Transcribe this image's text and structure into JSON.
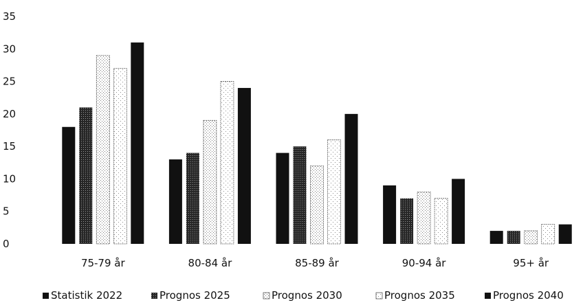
{
  "chart_data": {
    "type": "bar",
    "categories": [
      "75-79 år",
      "80-84 år",
      "85-89 år",
      "90-94 år",
      "95+ år"
    ],
    "series": [
      {
        "name": "Statistik 2022",
        "values": [
          18,
          13,
          14,
          9,
          2
        ],
        "color": "#111111",
        "pattern": "solid"
      },
      {
        "name": "Prognos 2025",
        "values": [
          21,
          14,
          15,
          7,
          2
        ],
        "color": "#333333",
        "pattern": "dense-dots"
      },
      {
        "name": "Prognos 2030",
        "values": [
          29,
          19,
          12,
          8,
          2
        ],
        "color": "#ffffff",
        "pattern": "light-dots"
      },
      {
        "name": "Prognos 2035",
        "values": [
          27,
          25,
          16,
          7,
          3
        ],
        "color": "#ffffff",
        "pattern": "sparse-dots"
      },
      {
        "name": "Prognos 2040",
        "values": [
          31,
          24,
          20,
          10,
          3
        ],
        "color": "#111111",
        "pattern": "solid"
      }
    ],
    "ylim": [
      0,
      35
    ],
    "yticks": [
      "0",
      "5",
      "10",
      "15",
      "20",
      "25",
      "30",
      "35"
    ],
    "grid": false,
    "legend_position": "bottom"
  }
}
